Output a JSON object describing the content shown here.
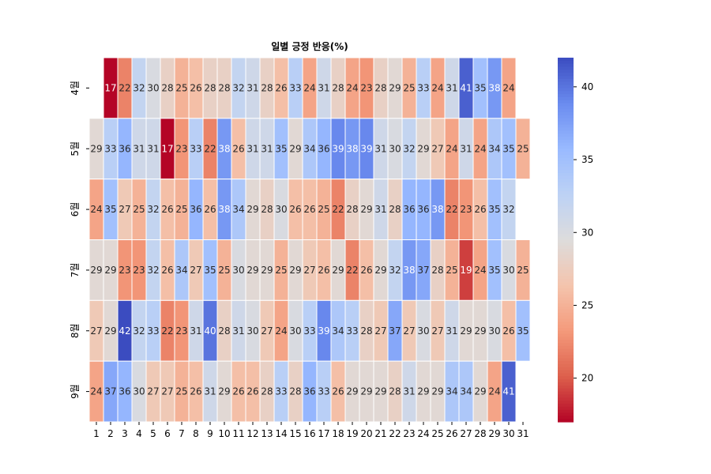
{
  "chart_data": {
    "type": "heatmap",
    "title": "일별 긍정 반응(%)",
    "x_categories": [
      "1",
      "2",
      "3",
      "4",
      "5",
      "6",
      "7",
      "8",
      "9",
      "10",
      "11",
      "12",
      "13",
      "14",
      "15",
      "16",
      "17",
      "18",
      "19",
      "20",
      "21",
      "22",
      "23",
      "24",
      "25",
      "26",
      "27",
      "28",
      "29",
      "30",
      "31"
    ],
    "y_categories": [
      "4월",
      "5월",
      "6월",
      "7월",
      "8월",
      "9월"
    ],
    "values": [
      [
        null,
        17,
        22,
        32,
        30,
        28,
        25,
        26,
        28,
        28,
        32,
        31,
        28,
        26,
        33,
        24,
        31,
        28,
        24,
        23,
        28,
        29,
        25,
        33,
        24,
        31,
        41,
        35,
        38,
        24,
        null
      ],
      [
        29,
        33,
        36,
        31,
        31,
        17,
        23,
        33,
        22,
        38,
        26,
        31,
        31,
        35,
        29,
        34,
        36,
        39,
        38,
        39,
        31,
        30,
        32,
        29,
        27,
        24,
        31,
        24,
        34,
        35,
        25
      ],
      [
        24,
        35,
        27,
        25,
        32,
        26,
        25,
        36,
        26,
        38,
        34,
        29,
        28,
        30,
        26,
        26,
        25,
        22,
        28,
        29,
        31,
        28,
        36,
        36,
        38,
        22,
        23,
        26,
        35,
        32,
        null
      ],
      [
        29,
        29,
        23,
        23,
        32,
        26,
        34,
        27,
        35,
        25,
        30,
        29,
        29,
        25,
        29,
        27,
        26,
        29,
        22,
        26,
        29,
        32,
        38,
        37,
        28,
        25,
        19,
        24,
        35,
        30,
        25
      ],
      [
        27,
        29,
        42,
        32,
        33,
        22,
        23,
        31,
        40,
        28,
        31,
        30,
        27,
        24,
        30,
        33,
        39,
        34,
        33,
        28,
        27,
        37,
        27,
        30,
        27,
        31,
        29,
        29,
        30,
        26,
        35
      ],
      [
        24,
        37,
        36,
        30,
        27,
        27,
        25,
        26,
        31,
        29,
        26,
        26,
        28,
        33,
        28,
        36,
        33,
        26,
        29,
        29,
        29,
        28,
        31,
        29,
        29,
        34,
        34,
        29,
        24,
        41,
        null
      ]
    ],
    "colormap": "coolwarm",
    "vmin": 17,
    "vmax": 42,
    "colorbar_ticks": [
      20,
      25,
      30,
      35,
      40
    ],
    "annotations": true
  }
}
